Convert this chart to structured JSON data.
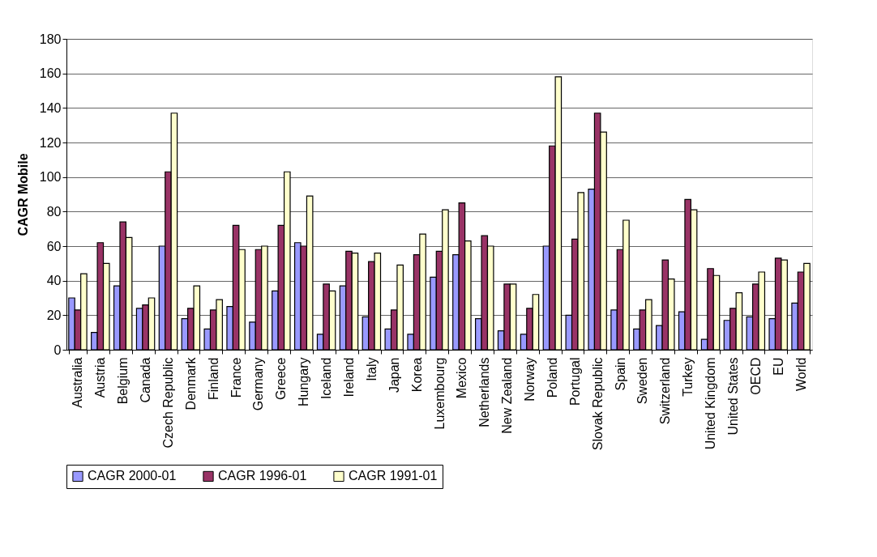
{
  "chart_data": {
    "type": "bar",
    "ylabel": "CAGR Mobile",
    "categories": [
      "Australia",
      "Austria",
      "Belgium",
      "Canada",
      "Czech Republic",
      "Denmark",
      "Finland",
      "France",
      "Germany",
      "Greece",
      "Hungary",
      "Iceland",
      "Ireland",
      "Italy",
      "Japan",
      "Korea",
      "Luxembourg",
      "Mexico",
      "Netherlands",
      "New Zealand",
      "Norway",
      "Poland",
      "Portugal",
      "Slovak Republic",
      "Spain",
      "Sweden",
      "Switzerland",
      "Turkey",
      "United Kingdom",
      "United States",
      "OECD",
      "EU",
      "World"
    ],
    "series": [
      {
        "name": "CAGR 2000-01",
        "color": "#9999ff",
        "values": [
          30,
          10,
          37,
          24,
          60,
          18,
          12,
          25,
          16,
          34,
          62,
          9,
          37,
          19,
          12,
          9,
          42,
          55,
          18,
          11,
          9,
          60,
          20,
          93,
          23,
          12,
          14,
          22,
          6,
          17,
          19,
          18,
          27
        ]
      },
      {
        "name": "CAGR 1996-01",
        "color": "#993366",
        "values": [
          23,
          62,
          74,
          26,
          103,
          24,
          23,
          72,
          58,
          72,
          60,
          38,
          57,
          51,
          23,
          55,
          57,
          85,
          66,
          38,
          24,
          118,
          64,
          137,
          58,
          23,
          52,
          87,
          47,
          24,
          38,
          53,
          45
        ]
      },
      {
        "name": "CAGR 1991-01",
        "color": "#ffffcc",
        "values": [
          44,
          50,
          65,
          30,
          137,
          37,
          29,
          58,
          60,
          103,
          89,
          34,
          56,
          56,
          49,
          67,
          81,
          63,
          60,
          38,
          32,
          158,
          91,
          126,
          75,
          29,
          41,
          81,
          43,
          33,
          45,
          52,
          50
        ]
      }
    ],
    "ylim": [
      0,
      180
    ],
    "yticks": [
      0,
      20,
      40,
      60,
      80,
      100,
      120,
      140,
      160,
      180
    ],
    "grid": "y",
    "legend": "bottom"
  }
}
